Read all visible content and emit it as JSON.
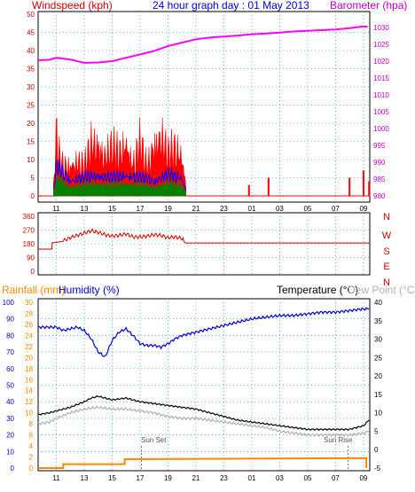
{
  "header": {
    "left": "Windspeed (kph)",
    "center": "24 hour graph day : 01 May 2013",
    "right": "Barometer (hpa)"
  },
  "bottom_header": {
    "rain": "Rainfall (mm)",
    "hum": "Humidity (%)",
    "temp": "Temperature (°C)",
    "dew": "Dew Point (°C)"
  },
  "colors": {
    "wind": "#ff0000",
    "gust": "#ff0000",
    "barometer": "#ff00ff",
    "avg_wind": "#0000ff",
    "wind_green": "#008000",
    "direction": "#cc0000",
    "rain": "#ff8800",
    "humidity": "#0000cc",
    "temperature": "#000000",
    "dewpoint": "#b0b0b0",
    "axis_left": "#cc0000",
    "axis_right_top": "#c000c0",
    "axis_hum": "#0000cc",
    "axis_rain": "#ff8800",
    "axis_temp": "#000000",
    "grid": "#009999"
  },
  "chart_data": [
    {
      "type": "line",
      "panel": "wind_barometer",
      "x_ticks": [
        "11",
        "13",
        "15",
        "17",
        "19",
        "21",
        "23",
        "01",
        "03",
        "05",
        "07",
        "09"
      ],
      "y_left_ticks": [
        "0",
        "5",
        "10",
        "15",
        "20",
        "25",
        "30",
        "35",
        "40",
        "45",
        "50"
      ],
      "y_left_lim": [
        0,
        50
      ],
      "y_right_ticks": [
        "980",
        "985",
        "990",
        "995",
        "1000",
        "1005",
        "1010",
        "1015",
        "1020",
        "1025",
        "1030"
      ],
      "y_right_lim": [
        980,
        1032
      ],
      "series": [
        {
          "key": "barometer",
          "x": [
            9.7,
            10.5,
            11,
            12,
            13,
            14,
            15,
            16,
            17,
            18,
            19,
            20,
            21,
            22,
            23,
            24,
            25,
            26,
            27,
            28,
            29,
            30,
            31,
            32,
            33,
            33.3
          ],
          "values": [
            1020.3,
            1020.4,
            1021,
            1020.5,
            1019.5,
            1019.6,
            1020,
            1021,
            1022,
            1023,
            1024.5,
            1025.5,
            1026.5,
            1027,
            1027.3,
            1027.6,
            1028,
            1028.2,
            1028.5,
            1028.8,
            1029,
            1029.2,
            1029.4,
            1029.8,
            1030.3,
            1030.2
          ]
        },
        {
          "key": "gust",
          "x": [
            10.8,
            11.0,
            11.2,
            11.5,
            12,
            12.5,
            13,
            13.5,
            14,
            14.5,
            15,
            15.5,
            16,
            16.5,
            17,
            17.5,
            18,
            18.5,
            19,
            19.5,
            20,
            20.3
          ],
          "values": [
            4,
            26,
            17,
            13,
            14,
            15,
            12,
            22,
            24,
            17,
            20,
            18,
            24,
            14,
            22,
            12,
            24,
            26,
            17,
            20,
            18,
            4
          ]
        },
        {
          "key": "avg",
          "x": [
            10.8,
            11.0,
            11.5,
            12,
            13,
            14,
            15,
            16,
            17,
            18,
            19,
            20,
            20.3
          ],
          "values": [
            2,
            11,
            9,
            6,
            7,
            8,
            7,
            8,
            7,
            6,
            8,
            7,
            2
          ]
        }
      ],
      "gust_spikes": {
        "x": [
          24.8,
          26.2,
          32.0,
          33.0,
          33.4
        ],
        "values": [
          3,
          5,
          5,
          7,
          4
        ]
      }
    },
    {
      "type": "line",
      "panel": "wind_direction",
      "y_ticks": [
        "360",
        "270",
        "180",
        "90",
        "0"
      ],
      "ylim": [
        0,
        360
      ],
      "dir_labels": [
        "N",
        "W",
        "S",
        "E",
        "N"
      ],
      "series": [
        {
          "key": "direction",
          "x": [
            9.7,
            10.7,
            10.7,
            11.5,
            12,
            12.5,
            13,
            13.5,
            14,
            14.5,
            15,
            15.5,
            16,
            16.5,
            17,
            17.5,
            18,
            18.5,
            19,
            19.5,
            20,
            20.3,
            33.4
          ],
          "values": [
            145,
            145,
            185,
            200,
            220,
            235,
            250,
            265,
            255,
            240,
            230,
            235,
            245,
            225,
            225,
            230,
            240,
            235,
            220,
            225,
            215,
            185,
            185
          ]
        }
      ]
    },
    {
      "type": "line",
      "panel": "humidity_temp_rain",
      "y_hum_ticks": [
        "0",
        "10",
        "20",
        "30",
        "40",
        "50",
        "60",
        "70",
        "80",
        "90",
        "100"
      ],
      "y_rain_ticks": [
        "0",
        "2",
        "4",
        "6",
        "8",
        "10",
        "12",
        "14",
        "16",
        "18",
        "20",
        "22",
        "24",
        "26",
        "28",
        "30"
      ],
      "y_temp_ticks": [
        "-5",
        "0",
        "5",
        "10",
        "15",
        "20",
        "25",
        "30",
        "35",
        "40"
      ],
      "annotations": [
        "Sun Set",
        "Sun Rise"
      ],
      "series": [
        {
          "key": "humidity",
          "x": [
            9.7,
            10.5,
            11,
            11.5,
            12,
            12.5,
            13,
            13.5,
            14,
            14.5,
            15,
            15.5,
            16,
            16.5,
            17,
            17.5,
            18,
            18.5,
            19,
            19.5,
            20,
            21,
            22,
            23,
            24,
            25,
            26,
            27,
            28,
            29,
            30,
            31,
            32,
            33,
            33.4
          ],
          "values": [
            85,
            85,
            85,
            83,
            84,
            85,
            83,
            78,
            70,
            67,
            77,
            82,
            84,
            80,
            75,
            74,
            74,
            73,
            75,
            78,
            80,
            82,
            84,
            86,
            88,
            90,
            91,
            92,
            92,
            93,
            94,
            94,
            95,
            96,
            96
          ]
        },
        {
          "key": "temperature",
          "x": [
            9.7,
            10.5,
            11,
            12,
            13,
            13.5,
            14,
            14.5,
            15,
            16,
            17,
            18,
            19,
            20,
            21,
            22,
            23,
            24,
            25,
            26,
            27,
            28,
            29,
            30,
            31,
            32,
            33,
            33.4
          ],
          "values": [
            9.5,
            10,
            10.5,
            11.5,
            13,
            14,
            14.5,
            14,
            13.5,
            14,
            13,
            12.5,
            12,
            11.5,
            11,
            10,
            9,
            8,
            7.5,
            7,
            6.5,
            6,
            5.5,
            5.5,
            5.5,
            5.5,
            6.5,
            8
          ]
        },
        {
          "key": "dewpoint",
          "x": [
            9.7,
            10.5,
            11,
            12,
            13,
            14,
            15,
            16,
            17,
            18,
            19,
            20,
            21,
            22,
            23,
            24,
            25,
            26,
            27,
            28,
            29,
            30,
            31,
            32,
            33,
            33.4
          ],
          "values": [
            7,
            7.5,
            8.5,
            10,
            11,
            11.5,
            11,
            11,
            10.5,
            10,
            9,
            8.5,
            8.5,
            8,
            7.5,
            7,
            6.5,
            6,
            5,
            4.5,
            4,
            4,
            4,
            4,
            4.5,
            5
          ]
        },
        {
          "key": "rainfall",
          "x": [
            9.7,
            11.5,
            11.5,
            15.9,
            15.9,
            33.2,
            33.2
          ],
          "values": [
            0,
            0,
            0.7,
            0.7,
            1.6,
            1.8,
            0
          ]
        }
      ]
    }
  ]
}
